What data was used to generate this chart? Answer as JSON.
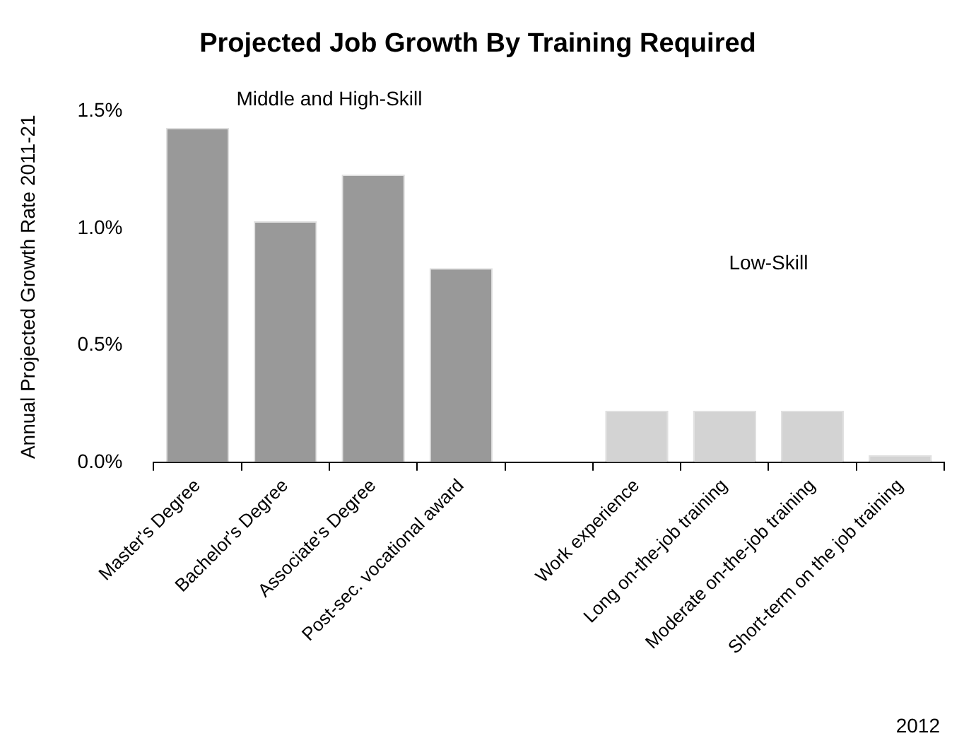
{
  "chart_data": {
    "type": "bar",
    "title": "Projected Job Growth By Training Required",
    "ylabel": "Annual Projected Growth Rate 2011-21",
    "categories": [
      "Master's Degree",
      "Bachelor's Degree",
      "Associate's Degree",
      "Post-sec. vocational award",
      null,
      "Work experience",
      "Long on-the-job training",
      "Moderate on-the-job training",
      "Short-term on the job training"
    ],
    "values": [
      1.43,
      1.03,
      1.23,
      0.83,
      null,
      0.22,
      0.22,
      0.22,
      0.03
    ],
    "colors": [
      "#999999",
      "#999999",
      "#999999",
      "#999999",
      "#999999",
      "#d3d3d3",
      "#d3d3d3",
      "#d3d3d3",
      "#d3d3d3"
    ],
    "ylim": [
      0,
      1.5
    ],
    "yticks": [
      {
        "value": 0,
        "label": "0.0%"
      },
      {
        "value": 0.5,
        "label": "0.5%"
      },
      {
        "value": 1,
        "label": "1.0%"
      },
      {
        "value": 1.5,
        "label": "1.5%"
      }
    ],
    "grid": false,
    "legend": false,
    "annotations": [
      "Middle and High-Skill",
      "Low-Skill",
      "2012"
    ]
  }
}
